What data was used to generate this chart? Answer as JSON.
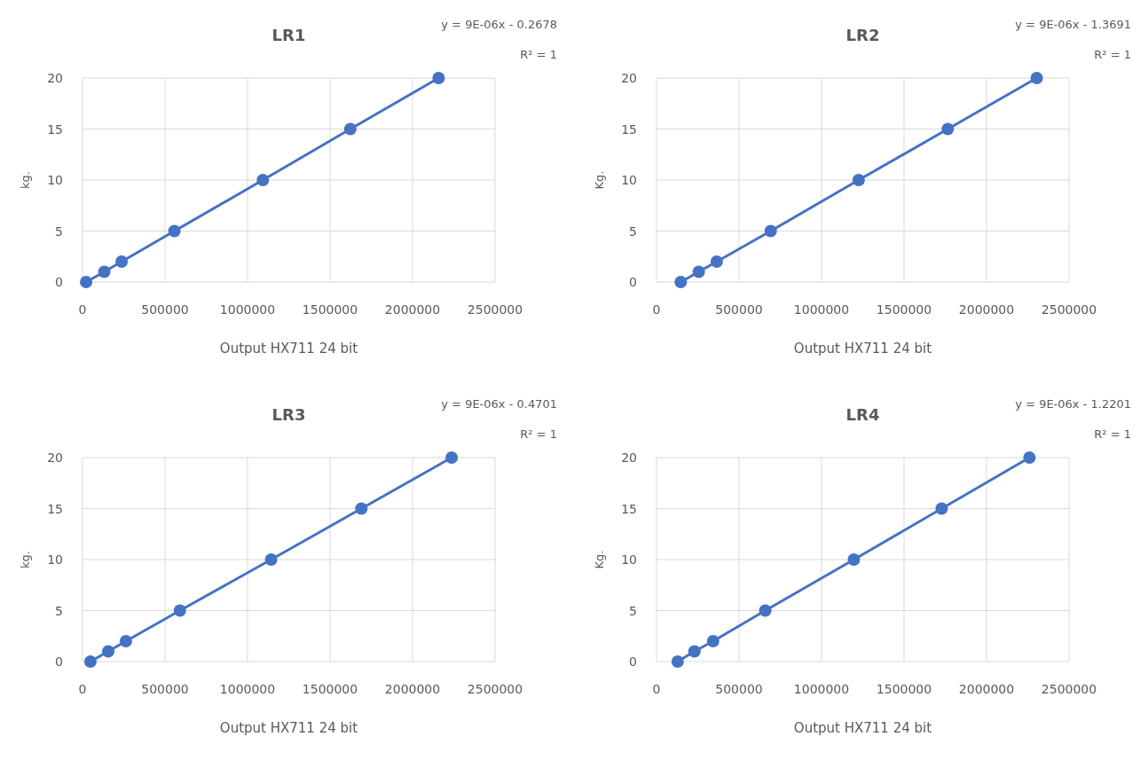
{
  "chart_data": [
    {
      "type": "line",
      "title": "LR1",
      "xlabel": "Output HX711 24 bit",
      "ylabel": "kg.",
      "annotations": [
        "y = 9E-06x - 0.2678",
        "R² = 1"
      ],
      "x": [
        22000,
        132000,
        237000,
        557000,
        1093000,
        1623000,
        2158000
      ],
      "series": [
        {
          "color": "#4472c4",
          "values": [
            0,
            1,
            2,
            5,
            10,
            15,
            20
          ]
        }
      ],
      "xlim": [
        0,
        2500000
      ],
      "xticks": [
        0,
        500000,
        1000000,
        1500000,
        2000000,
        2500000
      ],
      "ylim": [
        0,
        20
      ],
      "yticks": [
        0,
        5,
        10,
        15,
        20
      ],
      "grid": true,
      "marker": "circle",
      "line_style": "solid"
    },
    {
      "type": "line",
      "title": "LR2",
      "xlabel": "Output HX711 24 bit",
      "ylabel": "Kg.",
      "annotations": [
        "y = 9E-06x - 1.3691",
        "R² = 1"
      ],
      "x": [
        147000,
        256000,
        365000,
        692000,
        1225000,
        1765000,
        2304000
      ],
      "series": [
        {
          "color": "#4472c4",
          "values": [
            0,
            1,
            2,
            5,
            10,
            15,
            20
          ]
        }
      ],
      "xlim": [
        0,
        2500000
      ],
      "xticks": [
        0,
        500000,
        1000000,
        1500000,
        2000000,
        2500000
      ],
      "ylim": [
        0,
        20
      ],
      "yticks": [
        0,
        5,
        10,
        15,
        20
      ],
      "grid": true,
      "marker": "circle",
      "line_style": "solid"
    },
    {
      "type": "line",
      "title": "LR3",
      "xlabel": "Output HX711 24 bit",
      "ylabel": "kg.",
      "annotations": [
        "y = 9E-06x - 0.4701",
        "R² = 1"
      ],
      "x": [
        48000,
        156000,
        263000,
        590000,
        1143000,
        1690000,
        2237000
      ],
      "series": [
        {
          "color": "#4472c4",
          "values": [
            0,
            1,
            2,
            5,
            10,
            15,
            20
          ]
        }
      ],
      "xlim": [
        0,
        2500000
      ],
      "xticks": [
        0,
        500000,
        1000000,
        1500000,
        2000000,
        2500000
      ],
      "ylim": [
        0,
        20
      ],
      "yticks": [
        0,
        5,
        10,
        15,
        20
      ],
      "grid": true,
      "marker": "circle",
      "line_style": "solid"
    },
    {
      "type": "line",
      "title": "LR4",
      "xlabel": "Output HX711 24 bit",
      "ylabel": "Kg.",
      "annotations": [
        "y = 9E-06x - 1.2201",
        "R² = 1"
      ],
      "x": [
        128000,
        230000,
        343000,
        659000,
        1196000,
        1728000,
        2260000
      ],
      "series": [
        {
          "color": "#4472c4",
          "values": [
            0,
            1,
            2,
            5,
            10,
            15,
            20
          ]
        }
      ],
      "xlim": [
        0,
        2500000
      ],
      "xticks": [
        0,
        500000,
        1000000,
        1500000,
        2000000,
        2500000
      ],
      "ylim": [
        0,
        20
      ],
      "yticks": [
        0,
        5,
        10,
        15,
        20
      ],
      "grid": true,
      "marker": "circle",
      "line_style": "solid"
    }
  ]
}
